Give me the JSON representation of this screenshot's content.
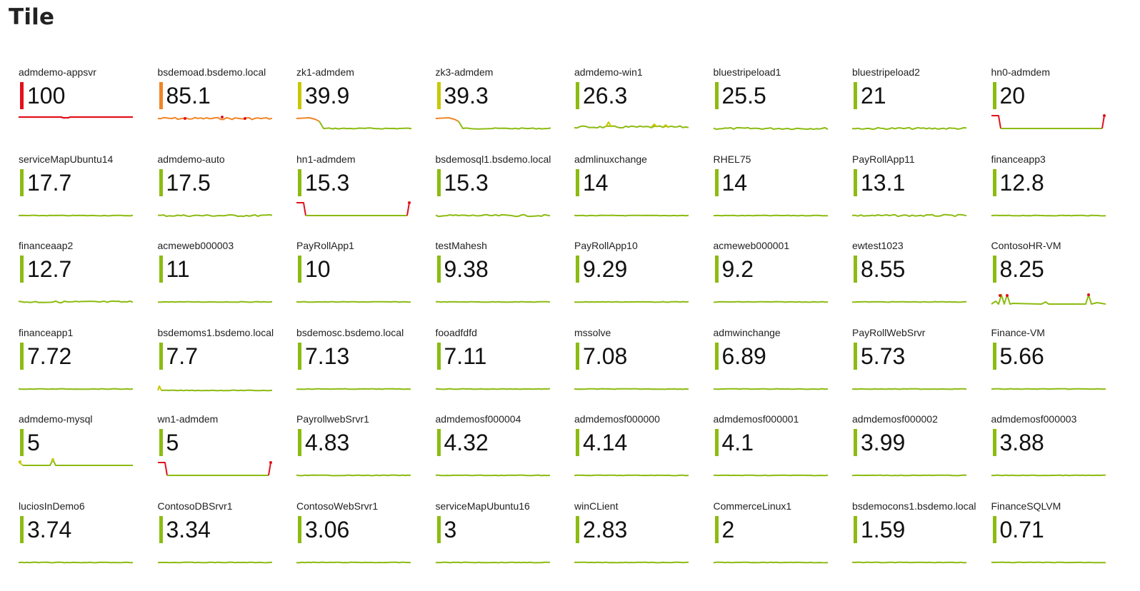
{
  "page": {
    "title": "Tile"
  },
  "colors": {
    "red": "#e3101b",
    "orange": "#f08525",
    "yellow": "#c8c800",
    "green": "#8cbb11"
  },
  "tiles": [
    {
      "name": "admdemo-appsvr",
      "value": "100",
      "color": "red",
      "spark": "red-flat"
    },
    {
      "name": "bsdemoad.bsdemo.local",
      "value": "85.1",
      "color": "orange",
      "spark": "orange-noisy"
    },
    {
      "name": "zk1-admdem",
      "value": "39.9",
      "color": "yellow",
      "spark": "orange-drop"
    },
    {
      "name": "zk3-admdem",
      "value": "39.3",
      "color": "yellow",
      "spark": "orange-drop"
    },
    {
      "name": "admdemo-win1",
      "value": "26.3",
      "color": "green",
      "spark": "yellow-noisy"
    },
    {
      "name": "bluestripeload1",
      "value": "25.5",
      "color": "green",
      "spark": "green-noisy"
    },
    {
      "name": "bluestripeload2",
      "value": "21",
      "color": "green",
      "spark": "green-noisy"
    },
    {
      "name": "hn0-admdem",
      "value": "20",
      "color": "green",
      "spark": "red-edges"
    },
    {
      "name": "serviceMapUbuntu14",
      "value": "17.7",
      "color": "green",
      "spark": "green-flat"
    },
    {
      "name": "admdemo-auto",
      "value": "17.5",
      "color": "green",
      "spark": "green-noisy"
    },
    {
      "name": "hn1-admdem",
      "value": "15.3",
      "color": "green",
      "spark": "red-edges"
    },
    {
      "name": "bsdemosql1.bsdemo.local",
      "value": "15.3",
      "color": "green",
      "spark": "green-noisy"
    },
    {
      "name": "admlinuxchange",
      "value": "14",
      "color": "green",
      "spark": "green-flat"
    },
    {
      "name": "RHEL75",
      "value": "14",
      "color": "green",
      "spark": "green-flat"
    },
    {
      "name": "PayRollApp11",
      "value": "13.1",
      "color": "green",
      "spark": "green-noisy"
    },
    {
      "name": "financeapp3",
      "value": "12.8",
      "color": "green",
      "spark": "green-flat"
    },
    {
      "name": "financeaap2",
      "value": "12.7",
      "color": "green",
      "spark": "green-noisy"
    },
    {
      "name": "acmeweb000003",
      "value": "11",
      "color": "green",
      "spark": "green-flat"
    },
    {
      "name": "PayRollApp1",
      "value": "10",
      "color": "green",
      "spark": "green-flat"
    },
    {
      "name": "testMahesh",
      "value": "9.38",
      "color": "green",
      "spark": "green-flat"
    },
    {
      "name": "PayRollApp10",
      "value": "9.29",
      "color": "green",
      "spark": "green-flat"
    },
    {
      "name": "acmeweb000001",
      "value": "9.2",
      "color": "green",
      "spark": "green-flat"
    },
    {
      "name": "ewtest1023",
      "value": "8.55",
      "color": "green",
      "spark": "green-flat"
    },
    {
      "name": "ContosoHR-VM",
      "value": "8.25",
      "color": "green",
      "spark": "spikes"
    },
    {
      "name": "financeapp1",
      "value": "7.72",
      "color": "green",
      "spark": "green-flat"
    },
    {
      "name": "bsdemoms1.bsdemo.local",
      "value": "7.7",
      "color": "green",
      "spark": "green-bump"
    },
    {
      "name": "bsdemosc.bsdemo.local",
      "value": "7.13",
      "color": "green",
      "spark": "green-flat"
    },
    {
      "name": "fooadfdfd",
      "value": "7.11",
      "color": "green",
      "spark": "green-flat"
    },
    {
      "name": "mssolve",
      "value": "7.08",
      "color": "green",
      "spark": "green-flat"
    },
    {
      "name": "admwinchange",
      "value": "6.89",
      "color": "green",
      "spark": "green-flat"
    },
    {
      "name": "PayRollWebSrvr",
      "value": "5.73",
      "color": "green",
      "spark": "green-flat"
    },
    {
      "name": "Finance-VM",
      "value": "5.66",
      "color": "green",
      "spark": "green-flat"
    },
    {
      "name": "admdemo-mysql",
      "value": "5",
      "color": "green",
      "spark": "yellow-spikes"
    },
    {
      "name": "wn1-admdem",
      "value": "5",
      "color": "green",
      "spark": "red-edges"
    },
    {
      "name": "PayrollwebSrvr1",
      "value": "4.83",
      "color": "green",
      "spark": "green-flat"
    },
    {
      "name": "admdemosf000004",
      "value": "4.32",
      "color": "green",
      "spark": "green-flat"
    },
    {
      "name": "admdemosf000000",
      "value": "4.14",
      "color": "green",
      "spark": "green-flat"
    },
    {
      "name": "admdemosf000001",
      "value": "4.1",
      "color": "green",
      "spark": "green-flat"
    },
    {
      "name": "admdemosf000002",
      "value": "3.99",
      "color": "green",
      "spark": "green-flat"
    },
    {
      "name": "admdemosf000003",
      "value": "3.88",
      "color": "green",
      "spark": "green-flat"
    },
    {
      "name": "luciosInDemo6",
      "value": "3.74",
      "color": "green",
      "spark": "green-flat"
    },
    {
      "name": "ContosoDBSrvr1",
      "value": "3.34",
      "color": "green",
      "spark": "green-flat"
    },
    {
      "name": "ContosoWebSrvr1",
      "value": "3.06",
      "color": "green",
      "spark": "green-flat"
    },
    {
      "name": "serviceMapUbuntu16",
      "value": "3",
      "color": "green",
      "spark": "green-flat"
    },
    {
      "name": "winCLient",
      "value": "2.83",
      "color": "green",
      "spark": "green-flat"
    },
    {
      "name": "CommerceLinux1",
      "value": "2",
      "color": "green",
      "spark": "green-flat"
    },
    {
      "name": "bsdemocons1.bsdemo.local",
      "value": "1.59",
      "color": "green",
      "spark": "green-flat"
    },
    {
      "name": "FinanceSQLVM",
      "value": "0.71",
      "color": "green",
      "spark": "green-flat"
    }
  ]
}
